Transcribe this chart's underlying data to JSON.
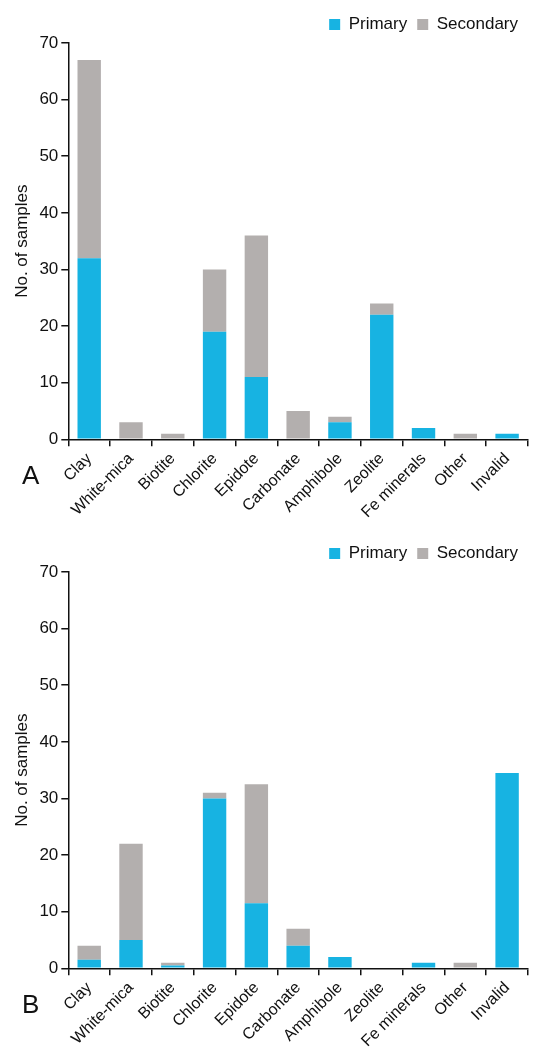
{
  "chart_data": [
    {
      "type": "bar",
      "stacked": true,
      "ylabel": "No. of samples",
      "categories": [
        "Clay",
        "White-mica",
        "Biotite",
        "Chlorite",
        "Epidote",
        "Carbonate",
        "Amphibole",
        "Zeolite",
        "Fe minerals",
        "Other",
        "Invalid"
      ],
      "series": [
        {
          "name": "Primary",
          "color": "#17b3e2",
          "values": [
            32,
            0,
            0,
            19,
            11,
            0,
            3,
            22,
            2,
            0,
            1
          ]
        },
        {
          "name": "Secondary",
          "color": "#b3afae",
          "values": [
            35,
            3,
            1,
            11,
            25,
            5,
            1,
            2,
            0,
            1,
            0
          ]
        }
      ],
      "ylim": [
        0,
        70
      ],
      "yticks": [
        0,
        10,
        20,
        30,
        40,
        50,
        60,
        70
      ],
      "grid": false,
      "legend": "top right",
      "annotations": [
        "A"
      ]
    },
    {
      "type": "bar",
      "stacked": true,
      "ylabel": "No. of samples",
      "categories": [
        "Clay",
        "White-mica",
        "Biotite",
        "Chlorite",
        "Epidote",
        "Carbonate",
        "Amphibole",
        "Zeolite",
        "Fe minerals",
        "Other",
        "Invalid"
      ],
      "series": [
        {
          "name": "Primary",
          "color": "#17b3e2",
          "values": [
            1.5,
            5,
            0.5,
            30,
            11.5,
            4,
            2,
            0,
            1,
            0,
            34.5
          ]
        },
        {
          "name": "Secondary",
          "color": "#b3afae",
          "values": [
            2.5,
            17,
            0.5,
            1,
            21,
            3,
            0,
            0,
            0,
            1,
            0
          ]
        }
      ],
      "ylim": [
        0,
        70
      ],
      "yticks": [
        0,
        10,
        20,
        30,
        40,
        50,
        60,
        70
      ],
      "grid": false,
      "legend": "top right",
      "annotations": [
        "B"
      ]
    }
  ]
}
